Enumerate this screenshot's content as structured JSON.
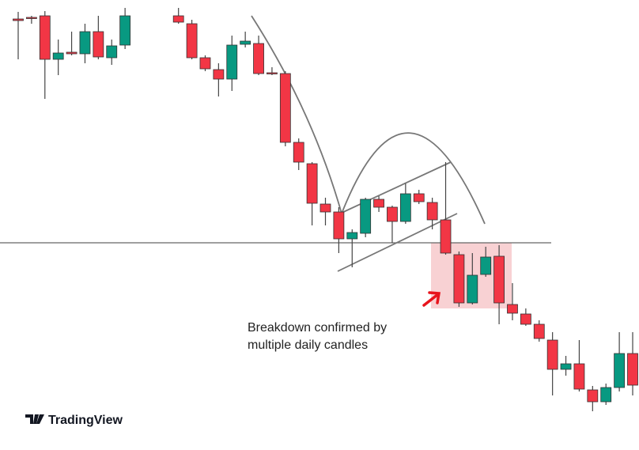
{
  "chart_data": {
    "type": "candlestick",
    "categories": [
      null,
      null,
      null,
      null,
      null,
      null,
      null,
      null,
      null,
      null,
      null,
      null,
      null,
      null,
      null,
      null,
      null,
      null,
      null,
      null,
      null,
      null,
      null,
      null,
      null,
      null,
      null,
      null,
      null,
      null,
      null,
      null,
      null,
      null,
      null,
      null,
      null,
      null,
      null,
      null,
      null,
      null,
      null,
      null,
      null,
      null,
      null
    ],
    "candles": [
      {
        "open": 545,
        "high": 554,
        "low": 494,
        "close": 543
      },
      {
        "open": 547,
        "high": 549,
        "low": 539,
        "close": 546
      },
      {
        "open": 549,
        "high": 555,
        "low": 444,
        "close": 494
      },
      {
        "open": 494,
        "high": 519,
        "low": 474,
        "close": 502
      },
      {
        "open": 503,
        "high": 529,
        "low": 499,
        "close": 501
      },
      {
        "open": 501,
        "high": 539,
        "low": 489,
        "close": 529
      },
      {
        "open": 529,
        "high": 549,
        "low": 494,
        "close": 497
      },
      {
        "open": 496,
        "high": 519,
        "low": 487,
        "close": 511
      },
      {
        "open": 512,
        "high": 559,
        "low": 507,
        "close": 549
      },
      null,
      null,
      null,
      {
        "open": 549,
        "high": 559,
        "low": 539,
        "close": 541
      },
      {
        "open": 539,
        "high": 544,
        "low": 494,
        "close": 496
      },
      {
        "open": 496,
        "high": 499,
        "low": 479,
        "close": 482
      },
      {
        "open": 481,
        "high": 489,
        "low": 447,
        "close": 469
      },
      {
        "open": 469,
        "high": 524,
        "low": 454,
        "close": 512
      },
      {
        "open": 513,
        "high": 529,
        "low": 509,
        "close": 517
      },
      {
        "open": 514,
        "high": 524,
        "low": 474,
        "close": 476
      },
      {
        "open": 477,
        "high": 484,
        "low": 474,
        "close": 476
      },
      {
        "open": 476,
        "high": 479,
        "low": 384,
        "close": 389
      },
      {
        "open": 389,
        "high": 394,
        "low": 354,
        "close": 364
      },
      {
        "open": 362,
        "high": 364,
        "low": 284,
        "close": 312
      },
      {
        "open": 311,
        "high": 319,
        "low": 284,
        "close": 301
      },
      {
        "open": 301,
        "high": 307,
        "low": 249,
        "close": 267
      },
      {
        "open": 267,
        "high": 279,
        "low": 231,
        "close": 275
      },
      {
        "open": 274,
        "high": 319,
        "low": 269,
        "close": 317
      },
      {
        "open": 317,
        "high": 321,
        "low": 301,
        "close": 307
      },
      {
        "open": 307,
        "high": 309,
        "low": 262,
        "close": 289
      },
      {
        "open": 289,
        "high": 337,
        "low": 286,
        "close": 324
      },
      {
        "open": 324,
        "high": 329,
        "low": 311,
        "close": 314
      },
      {
        "open": 313,
        "high": 319,
        "low": 279,
        "close": 291
      },
      {
        "open": 291,
        "high": 364,
        "low": 247,
        "close": 249
      },
      {
        "open": 247,
        "high": 251,
        "low": 181,
        "close": 186
      },
      {
        "open": 186,
        "high": 249,
        "low": 184,
        "close": 221
      },
      {
        "open": 222,
        "high": 257,
        "low": 219,
        "close": 244
      },
      {
        "open": 245,
        "high": 259,
        "low": 159,
        "close": 186
      },
      {
        "open": 184,
        "high": 211,
        "low": 164,
        "close": 173
      },
      {
        "open": 172,
        "high": 179,
        "low": 157,
        "close": 159
      },
      {
        "open": 159,
        "high": 164,
        "low": 137,
        "close": 141
      },
      {
        "open": 139,
        "high": 149,
        "low": 69,
        "close": 102
      },
      {
        "open": 102,
        "high": 119,
        "low": 94,
        "close": 109
      },
      {
        "open": 109,
        "high": 139,
        "low": 74,
        "close": 77
      },
      {
        "open": 76,
        "high": 81,
        "low": 49,
        "close": 61
      },
      {
        "open": 61,
        "high": 84,
        "low": 57,
        "close": 79
      },
      {
        "open": 79,
        "high": 149,
        "low": 74,
        "close": 122
      },
      {
        "open": 122,
        "high": 149,
        "low": 69,
        "close": 82
      }
    ],
    "up_color": "#089981",
    "down_color": "#f23645",
    "ylim": [
      0,
      569
    ],
    "annotation": [
      "Breakdown confirmed by",
      "multiple daily candles"
    ],
    "watermark": "TradingView"
  }
}
